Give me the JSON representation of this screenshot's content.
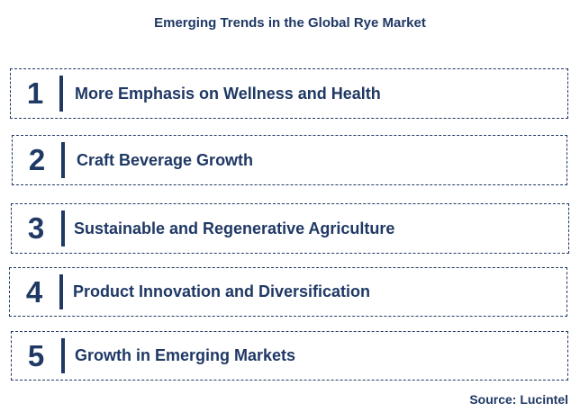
{
  "title": "Emerging Trends in the Global Rye Market",
  "trends": [
    {
      "number": "1",
      "label": "More Emphasis on Wellness and Health"
    },
    {
      "number": "2",
      "label": "Craft Beverage Growth"
    },
    {
      "number": "3",
      "label": "Sustainable and Regenerative Agriculture"
    },
    {
      "number": "4",
      "label": "Product Innovation and Diversification"
    },
    {
      "number": "5",
      "label": "Growth in Emerging Markets"
    }
  ],
  "source": "Source: Lucintel",
  "colors": {
    "text": "#1f3864",
    "border": "#203864",
    "background": "#ffffff"
  }
}
